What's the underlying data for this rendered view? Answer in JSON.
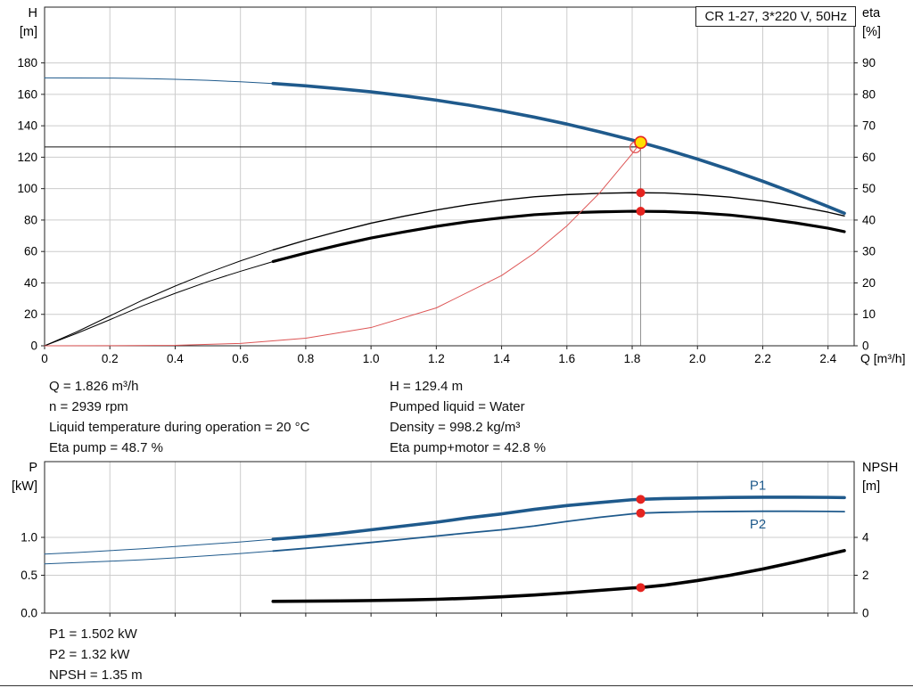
{
  "title_box": {
    "label": "CR 1-27, 3*220 V, 50Hz"
  },
  "info_top": {
    "left": [
      "Q = 1.826 m³/h",
      "n = 2939 rpm",
      "Liquid temperature during operation = 20 °C",
      "Eta pump = 48.7 %"
    ],
    "right": [
      "H = 129.4 m",
      "Pumped liquid = Water",
      "Density = 998.2 kg/m³",
      "Eta pump+motor = 42.8 %"
    ]
  },
  "info_bottom": [
    "P1 = 1.502 kW",
    "P2 = 1.32 kW",
    "NPSH = 1.35 m"
  ],
  "colors": {
    "curve_blue": "#1f5a8c",
    "curve_black": "#000000",
    "load_red": "#dd5555",
    "dot_red": "#e52420",
    "duty_yellow": "#ffdf00",
    "grid": "#cccccc",
    "frame": "#222222",
    "guide_gray": "#909090"
  },
  "chart_data": [
    {
      "id": "top",
      "type": "line",
      "x": {
        "min": 0,
        "max": 2.48,
        "axis_label": "Q [m³/h]",
        "show_labels": true,
        "ticks": [
          {
            "v": 0,
            "l": "0"
          },
          {
            "v": 0.2,
            "l": "0.2"
          },
          {
            "v": 0.4,
            "l": "0.4"
          },
          {
            "v": 0.6,
            "l": "0.6"
          },
          {
            "v": 0.8,
            "l": "0.8"
          },
          {
            "v": 1.0,
            "l": "1.0"
          },
          {
            "v": 1.2,
            "l": "1.2"
          },
          {
            "v": 1.4,
            "l": "1.4"
          },
          {
            "v": 1.6,
            "l": "1.6"
          },
          {
            "v": 1.8,
            "l": "1.8"
          },
          {
            "v": 2.0,
            "l": "2.0"
          },
          {
            "v": 2.2,
            "l": "2.2"
          },
          {
            "v": 2.4,
            "l": "2.4"
          }
        ]
      },
      "left": {
        "min": 0,
        "max": 215.5,
        "title": [
          "H",
          "[m]"
        ],
        "ticks": [
          {
            "v": 0,
            "l": "0"
          },
          {
            "v": 20,
            "l": "20"
          },
          {
            "v": 40,
            "l": "40"
          },
          {
            "v": 60,
            "l": "60"
          },
          {
            "v": 80,
            "l": "80"
          },
          {
            "v": 100,
            "l": "100"
          },
          {
            "v": 120,
            "l": "120"
          },
          {
            "v": 140,
            "l": "140"
          },
          {
            "v": 160,
            "l": "160"
          },
          {
            "v": 180,
            "l": "180"
          }
        ]
      },
      "right": {
        "min": 0,
        "max": 107.75,
        "title": [
          "eta",
          "[%]"
        ],
        "ticks": [
          {
            "v": 0,
            "l": "0"
          },
          {
            "v": 10,
            "l": "10"
          },
          {
            "v": 20,
            "l": "20"
          },
          {
            "v": 30,
            "l": "30"
          },
          {
            "v": 40,
            "l": "40"
          },
          {
            "v": 50,
            "l": "50"
          },
          {
            "v": 60,
            "l": "60"
          },
          {
            "v": 70,
            "l": "70"
          },
          {
            "v": 80,
            "l": "80"
          },
          {
            "v": 90,
            "l": "90"
          }
        ]
      },
      "guides": [
        {
          "type": "h",
          "axis": "left",
          "v": 126.5,
          "from_x": 0,
          "to_x": 1.826,
          "color": "#111111",
          "w": 1
        },
        {
          "type": "v",
          "axis": "left",
          "x": 1.826,
          "to_v": 129.4,
          "color": "#909090",
          "w": 1
        }
      ],
      "series": [
        {
          "name": "h-curve",
          "axis": "left",
          "color": "#1f5a8c",
          "width": 3.6,
          "thin_until": 0.7,
          "thin_width": 1,
          "points": [
            [
              0,
              170.5
            ],
            [
              0.1,
              170.45
            ],
            [
              0.2,
              170.35
            ],
            [
              0.3,
              170.05
            ],
            [
              0.4,
              169.6
            ],
            [
              0.5,
              168.9
            ],
            [
              0.6,
              168.0
            ],
            [
              0.7,
              166.9
            ],
            [
              0.8,
              165.4
            ],
            [
              0.9,
              163.6
            ],
            [
              1.0,
              161.6
            ],
            [
              1.1,
              159.1
            ],
            [
              1.2,
              156.3
            ],
            [
              1.3,
              153.1
            ],
            [
              1.4,
              149.5
            ],
            [
              1.5,
              145.5
            ],
            [
              1.6,
              141.1
            ],
            [
              1.7,
              136.2
            ],
            [
              1.8,
              130.9
            ],
            [
              1.826,
              129.4
            ],
            [
              1.9,
              125.1
            ],
            [
              2.0,
              118.8
            ],
            [
              2.1,
              112.0
            ],
            [
              2.2,
              104.7
            ],
            [
              2.3,
              96.9
            ],
            [
              2.4,
              88.6
            ],
            [
              2.45,
              84.3
            ]
          ]
        },
        {
          "name": "eta-pump-curve",
          "axis": "right",
          "color": "#000000",
          "width": 1.4,
          "thin_until": 0.7,
          "thin_width": 1,
          "points": [
            [
              0,
              0
            ],
            [
              0.1,
              4.5
            ],
            [
              0.2,
              9.5
            ],
            [
              0.3,
              14.5
            ],
            [
              0.4,
              19.0
            ],
            [
              0.5,
              23.2
            ],
            [
              0.6,
              27.0
            ],
            [
              0.7,
              30.5
            ],
            [
              0.8,
              33.6
            ],
            [
              0.9,
              36.4
            ],
            [
              1.0,
              39.0
            ],
            [
              1.1,
              41.2
            ],
            [
              1.2,
              43.2
            ],
            [
              1.3,
              44.9
            ],
            [
              1.4,
              46.3
            ],
            [
              1.5,
              47.4
            ],
            [
              1.6,
              48.1
            ],
            [
              1.7,
              48.5
            ],
            [
              1.8,
              48.7
            ],
            [
              1.9,
              48.6
            ],
            [
              2.0,
              48.1
            ],
            [
              2.1,
              47.3
            ],
            [
              2.2,
              46.1
            ],
            [
              2.3,
              44.5
            ],
            [
              2.4,
              42.5
            ],
            [
              2.45,
              41.3
            ]
          ]
        },
        {
          "name": "eta-pump-motor-curve",
          "axis": "right",
          "color": "#000000",
          "width": 3.2,
          "thin_until": 0.7,
          "thin_width": 1,
          "points": [
            [
              0,
              0
            ],
            [
              0.1,
              4.0
            ],
            [
              0.2,
              8.3
            ],
            [
              0.3,
              12.7
            ],
            [
              0.4,
              16.7
            ],
            [
              0.5,
              20.4
            ],
            [
              0.6,
              23.7
            ],
            [
              0.7,
              26.8
            ],
            [
              0.8,
              29.5
            ],
            [
              0.9,
              32.0
            ],
            [
              1.0,
              34.3
            ],
            [
              1.1,
              36.2
            ],
            [
              1.2,
              38.0
            ],
            [
              1.3,
              39.5
            ],
            [
              1.4,
              40.7
            ],
            [
              1.5,
              41.7
            ],
            [
              1.6,
              42.3
            ],
            [
              1.7,
              42.6
            ],
            [
              1.8,
              42.8
            ],
            [
              1.9,
              42.7
            ],
            [
              2.0,
              42.3
            ],
            [
              2.1,
              41.6
            ],
            [
              2.2,
              40.5
            ],
            [
              2.3,
              39.1
            ],
            [
              2.4,
              37.4
            ],
            [
              2.45,
              36.3
            ]
          ]
        },
        {
          "name": "load-curve",
          "axis": "left",
          "color": "#dd5555",
          "width": 1,
          "points": [
            [
              0,
              0
            ],
            [
              0.2,
              0.05
            ],
            [
              0.4,
              0.3
            ],
            [
              0.6,
              1.5
            ],
            [
              0.8,
              4.8
            ],
            [
              1.0,
              11.6
            ],
            [
              1.2,
              24.1
            ],
            [
              1.4,
              44.7
            ],
            [
              1.5,
              58.9
            ],
            [
              1.6,
              76.3
            ],
            [
              1.7,
              97.2
            ],
            [
              1.8,
              122.2
            ],
            [
              1.826,
              129.4
            ]
          ]
        }
      ],
      "markers": [
        {
          "type": "open",
          "x": 1.81,
          "v": 126.3,
          "axis": "left",
          "r": 6,
          "color": "#e25555"
        },
        {
          "type": "duty",
          "x": 1.826,
          "v": 129.4,
          "axis": "left",
          "r": 6.5,
          "fill": "#ffdf00",
          "stroke": "#e52420"
        },
        {
          "type": "dot",
          "x": 1.826,
          "v": 48.7,
          "axis": "right",
          "r": 5,
          "color": "#e52420"
        },
        {
          "type": "dot",
          "x": 1.826,
          "v": 42.8,
          "axis": "right",
          "r": 5,
          "color": "#e52420"
        }
      ],
      "labels": []
    },
    {
      "id": "bottom",
      "type": "line",
      "x": {
        "min": 0,
        "max": 2.48,
        "axis_label": "",
        "show_labels": false,
        "ticks": [
          {
            "v": 0.2
          },
          {
            "v": 0.4
          },
          {
            "v": 0.6
          },
          {
            "v": 0.8
          },
          {
            "v": 1.0
          },
          {
            "v": 1.2
          },
          {
            "v": 1.4
          },
          {
            "v": 1.6
          },
          {
            "v": 1.8
          },
          {
            "v": 2.0
          },
          {
            "v": 2.2
          },
          {
            "v": 2.4
          }
        ]
      },
      "left": {
        "min": 0,
        "max": 2.0,
        "title": [
          "P",
          "[kW]"
        ],
        "ticks": [
          {
            "v": 0,
            "l": "0.0"
          },
          {
            "v": 0.5,
            "l": "0.5"
          },
          {
            "v": 1.0,
            "l": "1.0"
          }
        ]
      },
      "right": {
        "min": 0,
        "max": 8.0,
        "title": [
          "NPSH",
          "[m]"
        ],
        "ticks": [
          {
            "v": 0,
            "l": "0"
          },
          {
            "v": 2,
            "l": "2"
          },
          {
            "v": 4,
            "l": "4"
          }
        ]
      },
      "guides": [],
      "series": [
        {
          "name": "p1-curve",
          "axis": "left",
          "color": "#1f5a8c",
          "width": 3.6,
          "thin_until": 0.7,
          "thin_width": 1,
          "points": [
            [
              0,
              0.78
            ],
            [
              0.1,
              0.8
            ],
            [
              0.2,
              0.825
            ],
            [
              0.3,
              0.85
            ],
            [
              0.4,
              0.88
            ],
            [
              0.5,
              0.91
            ],
            [
              0.6,
              0.94
            ],
            [
              0.7,
              0.975
            ],
            [
              0.8,
              1.01
            ],
            [
              0.9,
              1.05
            ],
            [
              1.0,
              1.1
            ],
            [
              1.1,
              1.15
            ],
            [
              1.2,
              1.2
            ],
            [
              1.3,
              1.26
            ],
            [
              1.4,
              1.31
            ],
            [
              1.5,
              1.37
            ],
            [
              1.6,
              1.42
            ],
            [
              1.7,
              1.46
            ],
            [
              1.8,
              1.497
            ],
            [
              1.826,
              1.502
            ],
            [
              1.9,
              1.512
            ],
            [
              2.0,
              1.52
            ],
            [
              2.1,
              1.527
            ],
            [
              2.2,
              1.53
            ],
            [
              2.3,
              1.53
            ],
            [
              2.4,
              1.528
            ],
            [
              2.45,
              1.525
            ]
          ]
        },
        {
          "name": "p2-curve",
          "axis": "left",
          "color": "#1f5a8c",
          "width": 1.8,
          "thin_until": 0.7,
          "thin_width": 1,
          "points": [
            [
              0,
              0.65
            ],
            [
              0.1,
              0.667
            ],
            [
              0.2,
              0.685
            ],
            [
              0.3,
              0.705
            ],
            [
              0.4,
              0.73
            ],
            [
              0.5,
              0.757
            ],
            [
              0.6,
              0.787
            ],
            [
              0.7,
              0.82
            ],
            [
              0.8,
              0.855
            ],
            [
              0.9,
              0.893
            ],
            [
              1.0,
              0.933
            ],
            [
              1.1,
              0.975
            ],
            [
              1.2,
              1.018
            ],
            [
              1.3,
              1.06
            ],
            [
              1.4,
              1.1
            ],
            [
              1.5,
              1.15
            ],
            [
              1.6,
              1.21
            ],
            [
              1.7,
              1.265
            ],
            [
              1.8,
              1.31
            ],
            [
              1.826,
              1.32
            ],
            [
              1.9,
              1.33
            ],
            [
              2.0,
              1.338
            ],
            [
              2.1,
              1.342
            ],
            [
              2.2,
              1.345
            ],
            [
              2.3,
              1.345
            ],
            [
              2.4,
              1.343
            ],
            [
              2.45,
              1.34
            ]
          ]
        },
        {
          "name": "npsh-curve",
          "axis": "right",
          "color": "#000000",
          "width": 3.6,
          "points": [
            [
              0.7,
              0.62
            ],
            [
              0.8,
              0.63
            ],
            [
              0.9,
              0.645
            ],
            [
              1.0,
              0.665
            ],
            [
              1.1,
              0.69
            ],
            [
              1.2,
              0.73
            ],
            [
              1.3,
              0.785
            ],
            [
              1.4,
              0.86
            ],
            [
              1.5,
              0.955
            ],
            [
              1.6,
              1.07
            ],
            [
              1.7,
              1.2
            ],
            [
              1.8,
              1.33
            ],
            [
              1.826,
              1.35
            ],
            [
              1.9,
              1.48
            ],
            [
              2.0,
              1.72
            ],
            [
              2.1,
              2.0
            ],
            [
              2.2,
              2.33
            ],
            [
              2.3,
              2.7
            ],
            [
              2.4,
              3.1
            ],
            [
              2.45,
              3.3
            ]
          ]
        }
      ],
      "markers": [
        {
          "type": "dot",
          "x": 1.826,
          "v": 1.502,
          "axis": "left",
          "r": 5,
          "color": "#e52420"
        },
        {
          "type": "dot",
          "x": 1.826,
          "v": 1.32,
          "axis": "left",
          "r": 5,
          "color": "#e52420"
        },
        {
          "type": "dot",
          "x": 1.826,
          "v": 1.35,
          "axis": "right",
          "r": 5,
          "color": "#e52420"
        }
      ],
      "labels": [
        {
          "text": "P1",
          "x": 2.16,
          "v": 1.63,
          "axis": "left",
          "color": "#1f5a8c"
        },
        {
          "text": "P2",
          "x": 2.16,
          "v": 1.12,
          "axis": "left",
          "color": "#1f5a8c"
        }
      ]
    }
  ]
}
